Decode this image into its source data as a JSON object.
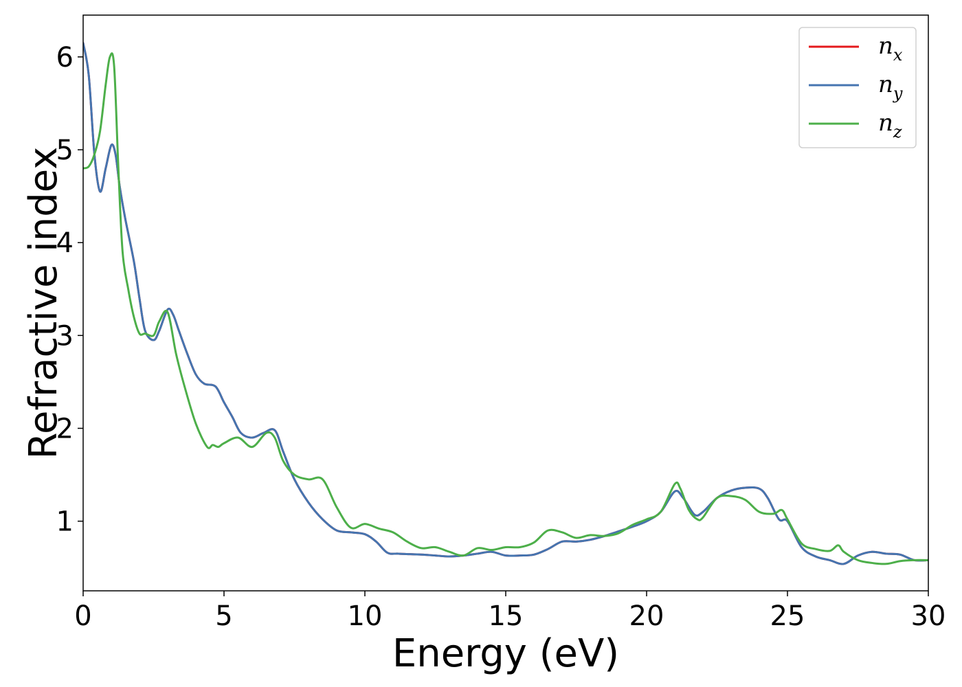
{
  "chart_data": {
    "type": "line",
    "title": "",
    "xlabel": "Energy (eV)",
    "ylabel": "Refractive index",
    "xlim": [
      0,
      30
    ],
    "ylim": [
      0.25,
      6.45
    ],
    "xticks": [
      0,
      5,
      10,
      15,
      20,
      25,
      30
    ],
    "yticks": [
      1,
      2,
      3,
      4,
      5,
      6
    ],
    "grid": false,
    "legend_position": "top-right",
    "series": [
      {
        "name": "n",
        "subscript": "x",
        "color": "#e41a1c",
        "x": [
          0,
          0.2,
          0.4,
          0.6,
          0.8,
          1.0,
          1.15,
          1.3,
          1.5,
          1.8,
          2.0,
          2.2,
          2.5,
          2.7,
          3.0,
          3.2,
          3.4,
          3.7,
          4.0,
          4.3,
          4.7,
          5.0,
          5.3,
          5.6,
          6.0,
          6.4,
          6.8,
          7.1,
          7.5,
          8.0,
          8.5,
          9.0,
          9.5,
          10.0,
          10.4,
          10.8,
          11.2,
          12.0,
          12.5,
          13.0,
          13.5,
          14.0,
          14.5,
          15.0,
          15.5,
          16.0,
          16.5,
          17.0,
          17.5,
          18.0,
          18.5,
          19.0,
          19.5,
          20.0,
          20.5,
          21.0,
          21.3,
          21.7,
          22.0,
          22.5,
          23.0,
          23.5,
          24.0,
          24.3,
          24.7,
          25.0,
          25.5,
          26.0,
          26.5,
          27.0,
          27.5,
          28.0,
          28.5,
          29.0,
          29.5,
          30.0
        ],
        "y": [
          6.15,
          5.8,
          4.95,
          4.55,
          4.8,
          5.05,
          4.95,
          4.6,
          4.25,
          3.8,
          3.4,
          3.05,
          2.95,
          3.05,
          3.28,
          3.22,
          3.05,
          2.8,
          2.58,
          2.48,
          2.45,
          2.28,
          2.12,
          1.95,
          1.9,
          1.95,
          1.98,
          1.75,
          1.45,
          1.2,
          1.02,
          0.9,
          0.88,
          0.86,
          0.78,
          0.66,
          0.65,
          0.64,
          0.63,
          0.62,
          0.63,
          0.65,
          0.67,
          0.63,
          0.63,
          0.64,
          0.7,
          0.78,
          0.78,
          0.8,
          0.84,
          0.89,
          0.94,
          1.0,
          1.1,
          1.32,
          1.25,
          1.07,
          1.1,
          1.25,
          1.33,
          1.36,
          1.35,
          1.25,
          1.02,
          1.0,
          0.72,
          0.62,
          0.58,
          0.54,
          0.63,
          0.67,
          0.65,
          0.64,
          0.58,
          0.58
        ]
      },
      {
        "name": "n",
        "subscript": "y",
        "color": "#4575b0",
        "x": [
          0,
          0.2,
          0.4,
          0.6,
          0.8,
          1.0,
          1.15,
          1.3,
          1.5,
          1.8,
          2.0,
          2.2,
          2.5,
          2.7,
          3.0,
          3.2,
          3.4,
          3.7,
          4.0,
          4.3,
          4.7,
          5.0,
          5.3,
          5.6,
          6.0,
          6.4,
          6.8,
          7.1,
          7.5,
          8.0,
          8.5,
          9.0,
          9.5,
          10.0,
          10.4,
          10.8,
          11.2,
          12.0,
          12.5,
          13.0,
          13.5,
          14.0,
          14.5,
          15.0,
          15.5,
          16.0,
          16.5,
          17.0,
          17.5,
          18.0,
          18.5,
          19.0,
          19.5,
          20.0,
          20.5,
          21.0,
          21.3,
          21.7,
          22.0,
          22.5,
          23.0,
          23.5,
          24.0,
          24.3,
          24.7,
          25.0,
          25.5,
          26.0,
          26.5,
          27.0,
          27.5,
          28.0,
          28.5,
          29.0,
          29.5,
          30.0
        ],
        "y": [
          6.15,
          5.8,
          4.95,
          4.55,
          4.8,
          5.05,
          4.95,
          4.6,
          4.25,
          3.8,
          3.4,
          3.05,
          2.95,
          3.05,
          3.28,
          3.22,
          3.05,
          2.8,
          2.58,
          2.48,
          2.45,
          2.28,
          2.12,
          1.95,
          1.9,
          1.95,
          1.98,
          1.75,
          1.45,
          1.2,
          1.02,
          0.9,
          0.88,
          0.86,
          0.78,
          0.66,
          0.65,
          0.64,
          0.63,
          0.62,
          0.63,
          0.65,
          0.67,
          0.63,
          0.63,
          0.64,
          0.7,
          0.78,
          0.78,
          0.8,
          0.84,
          0.89,
          0.94,
          1.0,
          1.1,
          1.32,
          1.25,
          1.07,
          1.1,
          1.25,
          1.33,
          1.36,
          1.35,
          1.25,
          1.02,
          1.0,
          0.72,
          0.62,
          0.58,
          0.54,
          0.63,
          0.67,
          0.65,
          0.64,
          0.58,
          0.58
        ]
      },
      {
        "name": "n",
        "subscript": "z",
        "color": "#4daf4a",
        "x": [
          0,
          0.2,
          0.4,
          0.6,
          0.8,
          0.95,
          1.1,
          1.25,
          1.4,
          1.6,
          1.8,
          2.0,
          2.2,
          2.5,
          2.7,
          3.0,
          3.3,
          3.6,
          4.0,
          4.4,
          4.6,
          4.8,
          5.0,
          5.5,
          6.0,
          6.5,
          6.8,
          7.1,
          7.5,
          8.0,
          8.5,
          9.0,
          9.5,
          10.0,
          10.5,
          11.0,
          11.5,
          12.0,
          12.5,
          13.0,
          13.5,
          14.0,
          14.5,
          15.0,
          15.5,
          16.0,
          16.5,
          17.0,
          17.5,
          18.0,
          18.5,
          19.0,
          19.5,
          20.0,
          20.5,
          21.0,
          21.2,
          21.5,
          21.8,
          22.0,
          22.5,
          23.0,
          23.5,
          24.0,
          24.5,
          24.8,
          25.0,
          25.5,
          26.0,
          26.5,
          26.8,
          27.0,
          27.5,
          28.0,
          28.5,
          29.0,
          29.5,
          30.0
        ],
        "y": [
          4.8,
          4.82,
          4.95,
          5.2,
          5.7,
          6.0,
          5.9,
          4.8,
          3.9,
          3.5,
          3.2,
          3.02,
          3.02,
          3.0,
          3.15,
          3.25,
          2.8,
          2.45,
          2.05,
          1.8,
          1.82,
          1.8,
          1.84,
          1.9,
          1.8,
          1.95,
          1.9,
          1.65,
          1.5,
          1.45,
          1.45,
          1.15,
          0.93,
          0.97,
          0.92,
          0.88,
          0.78,
          0.71,
          0.72,
          0.67,
          0.63,
          0.71,
          0.69,
          0.72,
          0.72,
          0.77,
          0.9,
          0.88,
          0.82,
          0.85,
          0.84,
          0.87,
          0.96,
          1.02,
          1.1,
          1.4,
          1.35,
          1.12,
          1.02,
          1.04,
          1.25,
          1.27,
          1.23,
          1.1,
          1.08,
          1.12,
          1.02,
          0.76,
          0.7,
          0.68,
          0.74,
          0.67,
          0.58,
          0.55,
          0.54,
          0.57,
          0.58,
          0.58
        ]
      }
    ]
  }
}
